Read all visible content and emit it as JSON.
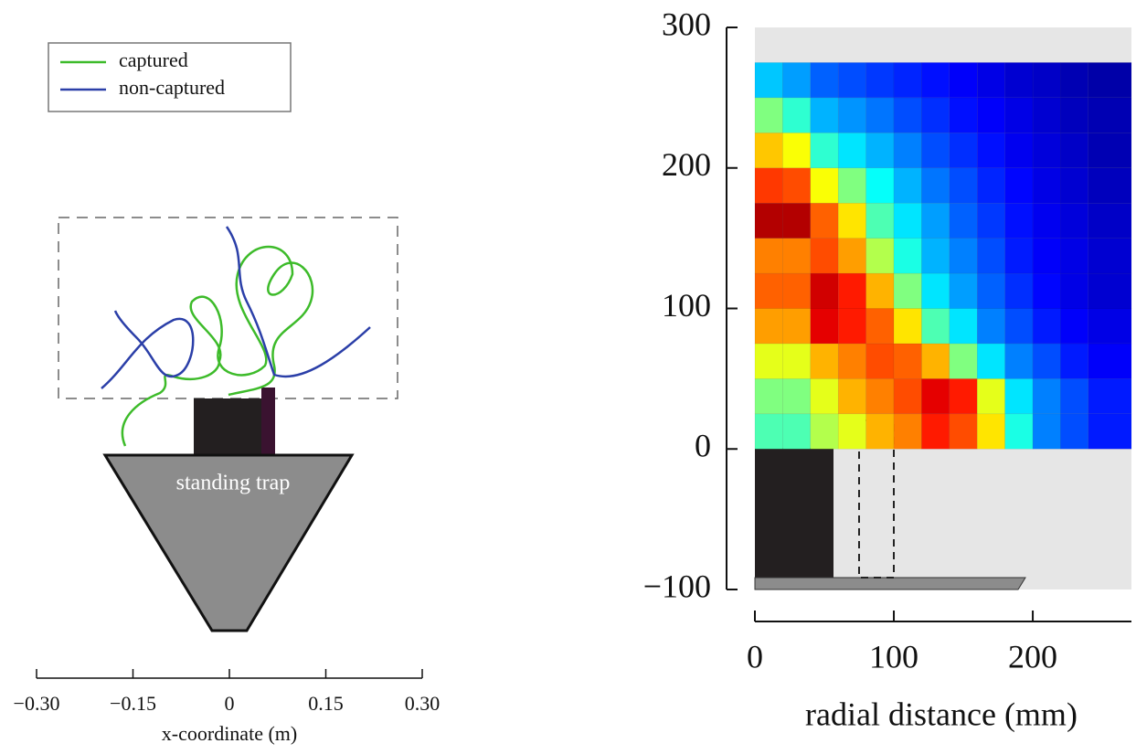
{
  "chart_data": [
    {
      "type": "trajectory",
      "xlabel": "x-coordinate (m)",
      "annotation": "standing trap",
      "series": [
        {
          "name": "captured",
          "color": "#3dbb2a"
        },
        {
          "name": "non-captured",
          "color": "#2b3fa8"
        }
      ],
      "xlim": [
        -0.3,
        0.3
      ],
      "xticks": [
        {
          "value": -0.3,
          "label": "−0.30"
        },
        {
          "value": -0.15,
          "label": "−0.15"
        },
        0,
        0.15,
        {
          "value": 0.3,
          "label": "0.30"
        }
      ]
    },
    {
      "type": "heatmap",
      "xlabel": "radial distance (mm)",
      "colormap": "jet",
      "xlim": [
        0,
        271
      ],
      "ylim": [
        -100,
        300
      ],
      "xticks": [
        0,
        100,
        200
      ],
      "yticks": [
        {
          "value": -100,
          "label": "−100"
        },
        0,
        100,
        200,
        300
      ],
      "x_edges": [
        0,
        20,
        40,
        60,
        80,
        100,
        120,
        140,
        160,
        180,
        200,
        220,
        240,
        271
      ],
      "y_edges": [
        0,
        25,
        50,
        75,
        100,
        125,
        150,
        175,
        200,
        225,
        250,
        275
      ],
      "z": [
        [
          0.45,
          0.45,
          0.55,
          0.6,
          0.7,
          0.75,
          0.85,
          0.8,
          0.65,
          0.4,
          0.25,
          0.2,
          0.15
        ],
        [
          0.5,
          0.5,
          0.6,
          0.7,
          0.75,
          0.8,
          0.9,
          0.85,
          0.6,
          0.35,
          0.25,
          0.2,
          0.15
        ],
        [
          0.6,
          0.6,
          0.7,
          0.75,
          0.8,
          0.78,
          0.7,
          0.5,
          0.35,
          0.25,
          0.2,
          0.15,
          0.12
        ],
        [
          0.72,
          0.72,
          0.9,
          0.85,
          0.78,
          0.65,
          0.45,
          0.35,
          0.25,
          0.2,
          0.15,
          0.12,
          0.1
        ],
        [
          0.78,
          0.78,
          0.92,
          0.85,
          0.7,
          0.5,
          0.35,
          0.28,
          0.22,
          0.17,
          0.13,
          0.1,
          0.08
        ],
        [
          0.75,
          0.75,
          0.8,
          0.72,
          0.55,
          0.4,
          0.3,
          0.25,
          0.2,
          0.15,
          0.12,
          0.1,
          0.08
        ],
        [
          0.95,
          0.95,
          0.78,
          0.65,
          0.45,
          0.35,
          0.28,
          0.22,
          0.18,
          0.14,
          0.11,
          0.09,
          0.07
        ],
        [
          0.82,
          0.8,
          0.62,
          0.5,
          0.38,
          0.3,
          0.24,
          0.2,
          0.16,
          0.13,
          0.1,
          0.08,
          0.06
        ],
        [
          0.68,
          0.62,
          0.42,
          0.35,
          0.3,
          0.25,
          0.2,
          0.17,
          0.14,
          0.11,
          0.09,
          0.07,
          0.05
        ],
        [
          0.5,
          0.42,
          0.3,
          0.27,
          0.24,
          0.2,
          0.17,
          0.14,
          0.12,
          0.1,
          0.08,
          0.06,
          0.05
        ],
        [
          0.32,
          0.28,
          0.22,
          0.2,
          0.18,
          0.16,
          0.14,
          0.12,
          0.1,
          0.08,
          0.07,
          0.05,
          0.04
        ]
      ]
    }
  ]
}
